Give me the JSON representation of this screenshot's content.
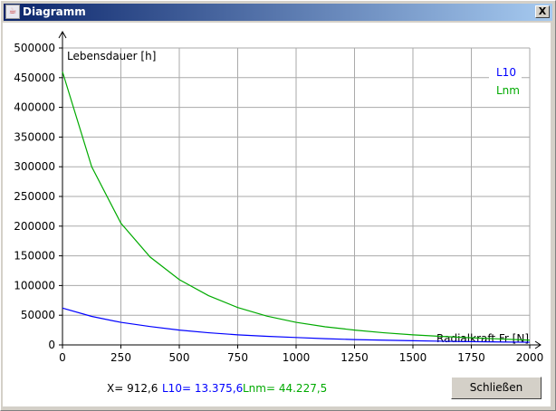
{
  "window": {
    "title": "Diagramm",
    "close_label": "X"
  },
  "status": {
    "x": "X= 912,6",
    "l10": "L10= 13.375,6",
    "lnm": "Lnm= 44.227,5"
  },
  "button": {
    "close_label": "Schließen"
  },
  "colors": {
    "l10": "#0000ff",
    "lnm": "#00aa00",
    "grid": "#aaaaaa"
  },
  "chart_data": {
    "type": "line",
    "xlabel": "Radialkraft Fr [N]",
    "ylabel": "Lebensdauer [h]",
    "xlim": [
      0,
      2000
    ],
    "ylim": [
      0,
      500000
    ],
    "x_ticks": [
      "0",
      "250",
      "500",
      "750",
      "1000",
      "1250",
      "1500",
      "1750",
      "2000"
    ],
    "y_ticks": [
      "0",
      "50000",
      "100000",
      "150000",
      "200000",
      "250000",
      "300000",
      "350000",
      "400000",
      "450000",
      "500000"
    ],
    "grid": true,
    "legend_position": "top-right",
    "x": [
      0,
      125,
      250,
      375,
      500,
      625,
      750,
      875,
      1000,
      1125,
      1250,
      1375,
      1500,
      1625,
      1750,
      1875,
      2000
    ],
    "series": [
      {
        "name": "L10",
        "values": [
          62000,
          48000,
          38000,
          31000,
          25000,
          20500,
          17000,
          14500,
          12500,
          10500,
          9000,
          8000,
          7000,
          6200,
          5500,
          5000,
          4500
        ]
      },
      {
        "name": "Lnm",
        "values": [
          460000,
          300000,
          205000,
          148000,
          110000,
          83000,
          63000,
          48500,
          38000,
          30500,
          25000,
          20500,
          17000,
          14300,
          12000,
          10000,
          8000
        ]
      }
    ]
  }
}
